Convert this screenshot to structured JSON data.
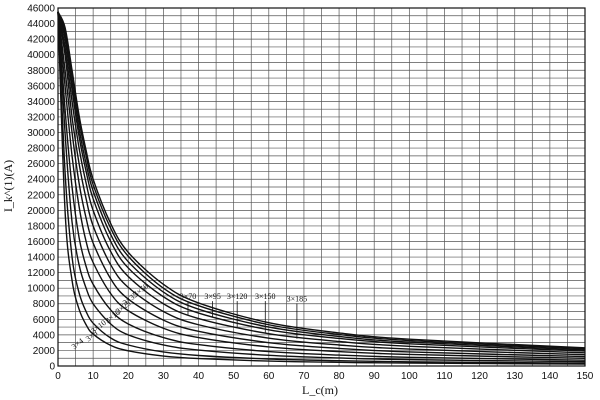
{
  "chart_data": {
    "type": "line",
    "xlabel": "L_c(m)",
    "ylabel": "I_k^(1)(A)",
    "xlim": [
      0,
      150
    ],
    "ylim": [
      0,
      46000
    ],
    "x_ticks": [
      0,
      10,
      20,
      30,
      40,
      50,
      60,
      70,
      80,
      90,
      100,
      110,
      120,
      130,
      140,
      150
    ],
    "y_ticks": [
      0,
      2000,
      4000,
      6000,
      8000,
      10000,
      12000,
      14000,
      16000,
      18000,
      20000,
      22000,
      24000,
      26000,
      28000,
      30000,
      32000,
      34000,
      36000,
      38000,
      40000,
      42000,
      44000,
      46000
    ],
    "grid": true,
    "x": [
      0,
      2,
      4,
      6,
      8,
      10,
      15,
      20,
      30,
      40,
      60,
      80,
      100,
      150
    ],
    "series": [
      {
        "name": "3×4",
        "values": [
          45500,
          20000,
          11000,
          7300,
          5300,
          4100,
          2650,
          1950,
          1280,
          950,
          630,
          470,
          375,
          250
        ]
      },
      {
        "name": "3×6",
        "values": [
          45500,
          25000,
          14000,
          9400,
          7000,
          5500,
          3600,
          2700,
          1800,
          1350,
          900,
          680,
          540,
          360
        ]
      },
      {
        "name": "3×10",
        "values": [
          45500,
          30000,
          18500,
          13000,
          10000,
          8000,
          5400,
          4000,
          2700,
          2050,
          1370,
          1030,
          820,
          550
        ]
      },
      {
        "name": "3×16",
        "values": [
          45500,
          33000,
          23000,
          16500,
          12800,
          10500,
          7200,
          5400,
          3650,
          2750,
          1850,
          1400,
          1120,
          750
        ]
      },
      {
        "name": "3×25",
        "values": [
          45500,
          36000,
          27000,
          20500,
          16000,
          13300,
          9300,
          7100,
          4850,
          3650,
          2450,
          1850,
          1480,
          990
        ]
      },
      {
        "name": "3×35",
        "values": [
          45500,
          38000,
          30000,
          23500,
          19000,
          15800,
          11200,
          8600,
          5900,
          4450,
          3000,
          2260,
          1810,
          1210
        ]
      },
      {
        "name": "3×50",
        "values": [
          45500,
          40000,
          32000,
          26000,
          21500,
          18000,
          13000,
          10100,
          7000,
          5300,
          3580,
          2700,
          2170,
          1450
        ]
      },
      {
        "name": "3×70",
        "values": [
          45500,
          41000,
          34000,
          28000,
          23500,
          20000,
          14700,
          11500,
          8000,
          6100,
          4150,
          3150,
          2530,
          1700
        ]
      },
      {
        "name": "3×95",
        "values": [
          45500,
          42000,
          35500,
          29500,
          25000,
          21500,
          16000,
          12600,
          8900,
          6800,
          4650,
          3540,
          2850,
          1920
        ]
      },
      {
        "name": "3×120",
        "values": [
          45500,
          42500,
          36500,
          30500,
          26000,
          22500,
          16900,
          13400,
          9500,
          7300,
          5000,
          3800,
          3070,
          2070
        ]
      },
      {
        "name": "3×150",
        "values": [
          45500,
          43000,
          37500,
          31500,
          27000,
          23300,
          17700,
          14100,
          10000,
          7750,
          5300,
          4050,
          3270,
          2210
        ]
      },
      {
        "name": "3×185",
        "values": [
          45500,
          43500,
          38000,
          32200,
          27700,
          24000,
          18300,
          14600,
          10500,
          8100,
          5560,
          4250,
          3440,
          2330
        ]
      }
    ],
    "annotations": [
      {
        "text": "3×4",
        "series": "3×4",
        "x": 6,
        "y": 2600
      },
      {
        "text": "3×6",
        "series": "3×6",
        "x": 10,
        "y": 3600
      },
      {
        "text": "3×10",
        "series": "3×10",
        "x": 12,
        "y": 4800
      },
      {
        "text": "3×16",
        "series": "3×16",
        "x": 16,
        "y": 6100
      },
      {
        "text": "3×25",
        "series": "3×25",
        "x": 19,
        "y": 7300
      },
      {
        "text": "3×35",
        "series": "3×35",
        "x": 21,
        "y": 8400
      },
      {
        "text": "3×50",
        "series": "3×50",
        "x": 24,
        "y": 9500
      },
      {
        "text": "3×70",
        "series": "3×70",
        "x": 37,
        "y": 8600,
        "target_x": 37,
        "target_y": 6500
      },
      {
        "text": "3×95",
        "series": "3×95",
        "x": 44,
        "y": 8600,
        "target_x": 44,
        "target_y": 6300
      },
      {
        "text": "3×120",
        "series": "3×120",
        "x": 51,
        "y": 8600,
        "target_x": 51,
        "target_y": 5000
      },
      {
        "text": "3×150",
        "series": "3×150",
        "x": 59,
        "y": 8600,
        "target_x": 59,
        "target_y": 4300
      },
      {
        "text": "3×185",
        "series": "3×185",
        "x": 68,
        "y": 8300,
        "target_x": 68,
        "target_y": 3500
      }
    ]
  }
}
